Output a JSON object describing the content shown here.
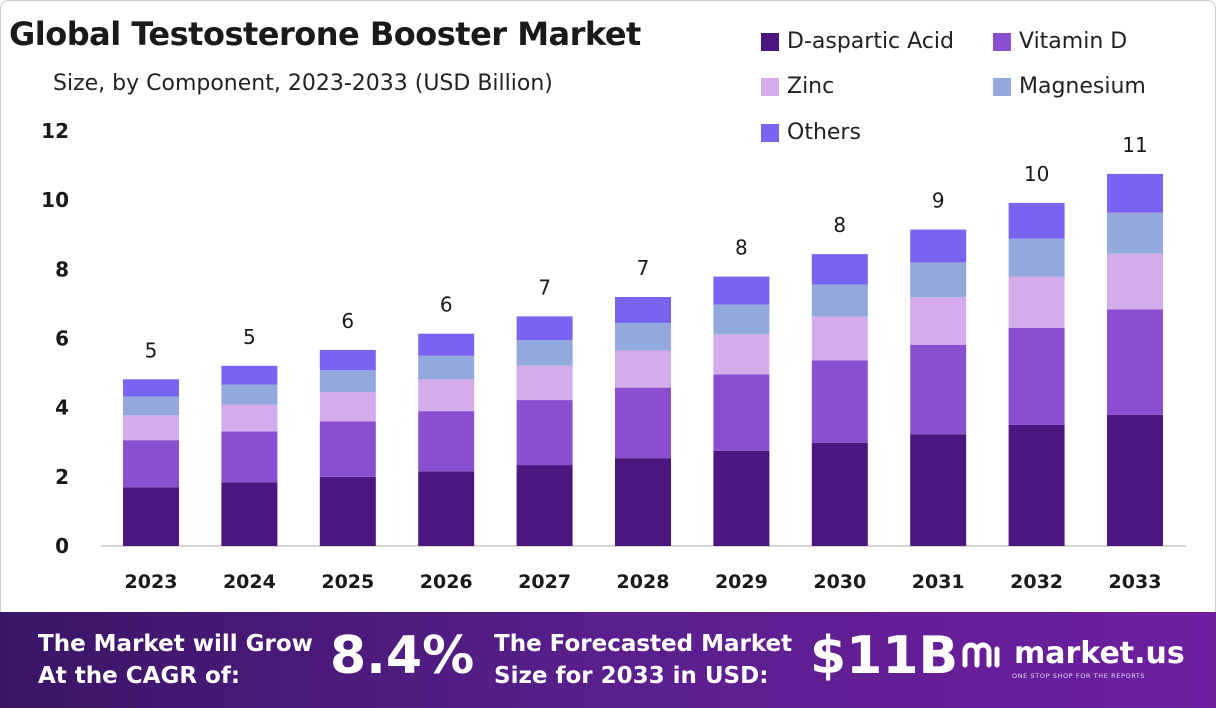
{
  "chart_data": {
    "type": "bar",
    "stacked": true,
    "title": "Global Testosterone Booster Market",
    "subtitle": "Size, by Component, 2023-2033 (USD Billion)",
    "categories": [
      "2023",
      "2024",
      "2025",
      "2026",
      "2027",
      "2028",
      "2029",
      "2030",
      "2031",
      "2032",
      "2033"
    ],
    "ylim": [
      0,
      12
    ],
    "yticks": [
      0,
      2,
      4,
      6,
      8,
      10,
      12
    ],
    "grid": false,
    "legend_position": "top-right",
    "series": [
      {
        "name": "D-aspartic Acid",
        "color": "#4b1680",
        "values": [
          1.7,
          1.84,
          2.0,
          2.16,
          2.34,
          2.54,
          2.75,
          2.98,
          3.23,
          3.5,
          3.79
        ]
      },
      {
        "name": "Vitamin D",
        "color": "#8a4fcf",
        "values": [
          1.36,
          1.47,
          1.6,
          1.74,
          1.88,
          2.04,
          2.21,
          2.39,
          2.59,
          2.81,
          3.05
        ]
      },
      {
        "name": "Zinc",
        "color": "#d4acec",
        "values": [
          0.72,
          0.78,
          0.85,
          0.92,
          0.99,
          1.07,
          1.16,
          1.26,
          1.37,
          1.48,
          1.61
        ]
      },
      {
        "name": "Magnesium",
        "color": "#93a9de",
        "values": [
          0.54,
          0.58,
          0.63,
          0.68,
          0.74,
          0.8,
          0.86,
          0.93,
          1.01,
          1.1,
          1.19
        ]
      },
      {
        "name": "Others",
        "color": "#7b63f2",
        "values": [
          0.5,
          0.54,
          0.59,
          0.64,
          0.69,
          0.75,
          0.81,
          0.88,
          0.95,
          1.03,
          1.12
        ]
      }
    ],
    "totals_labels": [
      "5",
      "5",
      "6",
      "6",
      "7",
      "7",
      "8",
      "8",
      "9",
      "10",
      "11"
    ]
  },
  "footer": {
    "cagr_text": [
      "The Market will Grow",
      "At the CAGR of:"
    ],
    "cagr_value": "8.4%",
    "forecast_text": [
      "The Forecasted Market",
      "Size for 2033 in USD:"
    ],
    "forecast_value": "$11B",
    "brand_name": "market.us",
    "brand_tagline": "ONE STOP SHOP FOR THE REPORTS"
  },
  "colors": {
    "axis": "#c8c8c8",
    "text": "#1a1a1a",
    "footer_start": "#3a1566",
    "footer_end": "#6d1fa0"
  }
}
